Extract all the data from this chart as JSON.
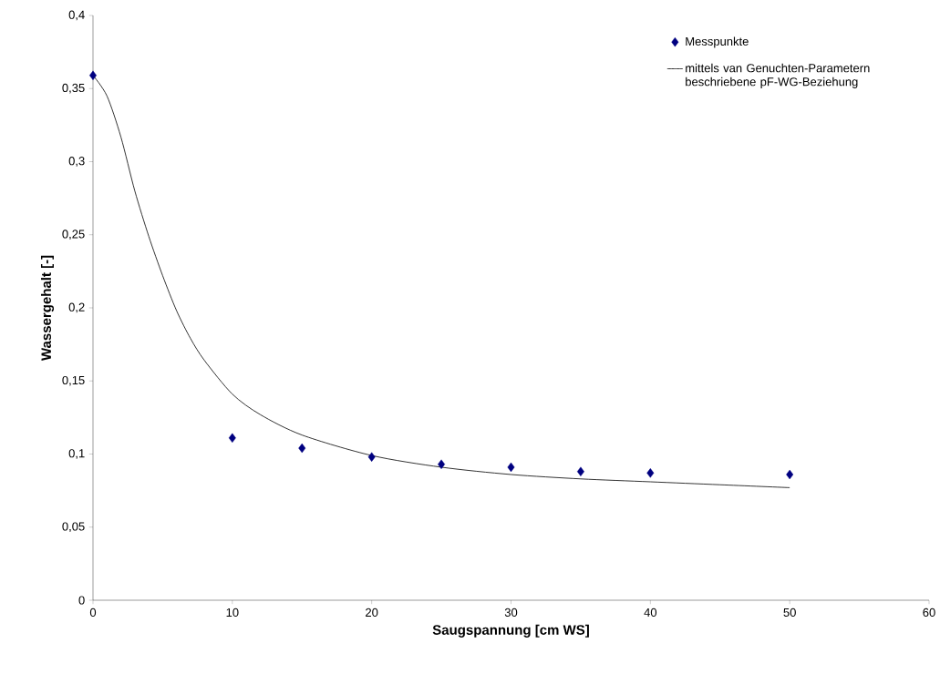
{
  "chart_data": {
    "type": "scatter",
    "xlabel": "Saugspannung [cm WS]",
    "ylabel": "Wassergehalt [-]",
    "xlim": [
      0,
      60
    ],
    "xticks": [
      0,
      10,
      20,
      30,
      40,
      50,
      60
    ],
    "ylim": [
      0,
      0.4
    ],
    "yticks": [
      {
        "value": 0,
        "label": "0"
      },
      {
        "value": 0.05,
        "label": "0,05"
      },
      {
        "value": 0.1,
        "label": "0,1"
      },
      {
        "value": 0.15,
        "label": "0,15"
      },
      {
        "value": 0.2,
        "label": "0,2"
      },
      {
        "value": 0.25,
        "label": "0,25"
      },
      {
        "value": 0.3,
        "label": "0,3"
      },
      {
        "value": 0.35,
        "label": "0,35"
      },
      {
        "value": 0.4,
        "label": "0,4"
      }
    ],
    "grid": false,
    "legend": "top right",
    "series": [
      {
        "name": "Messpunkte",
        "marker": "diamond",
        "color": "#000080",
        "x": [
          0,
          10,
          15,
          20,
          25,
          30,
          35,
          40,
          50
        ],
        "values": [
          0.359,
          0.111,
          0.104,
          0.098,
          0.093,
          0.091,
          0.088,
          0.087,
          0.086
        ]
      },
      {
        "name": "mittels van Genuchten-Parametern beschriebene pF-WG-Beziehung",
        "type": "line",
        "marker": "none",
        "line_style": "solid",
        "color": "#000000",
        "x": [
          0,
          1,
          2,
          3,
          4,
          5,
          6,
          7,
          8,
          10,
          12,
          15,
          20,
          25,
          30,
          35,
          40,
          45,
          50
        ],
        "values": [
          0.359,
          0.345,
          0.317,
          0.28,
          0.249,
          0.222,
          0.198,
          0.179,
          0.164,
          0.141,
          0.127,
          0.113,
          0.099,
          0.091,
          0.086,
          0.083,
          0.081,
          0.079,
          0.077
        ]
      }
    ]
  }
}
